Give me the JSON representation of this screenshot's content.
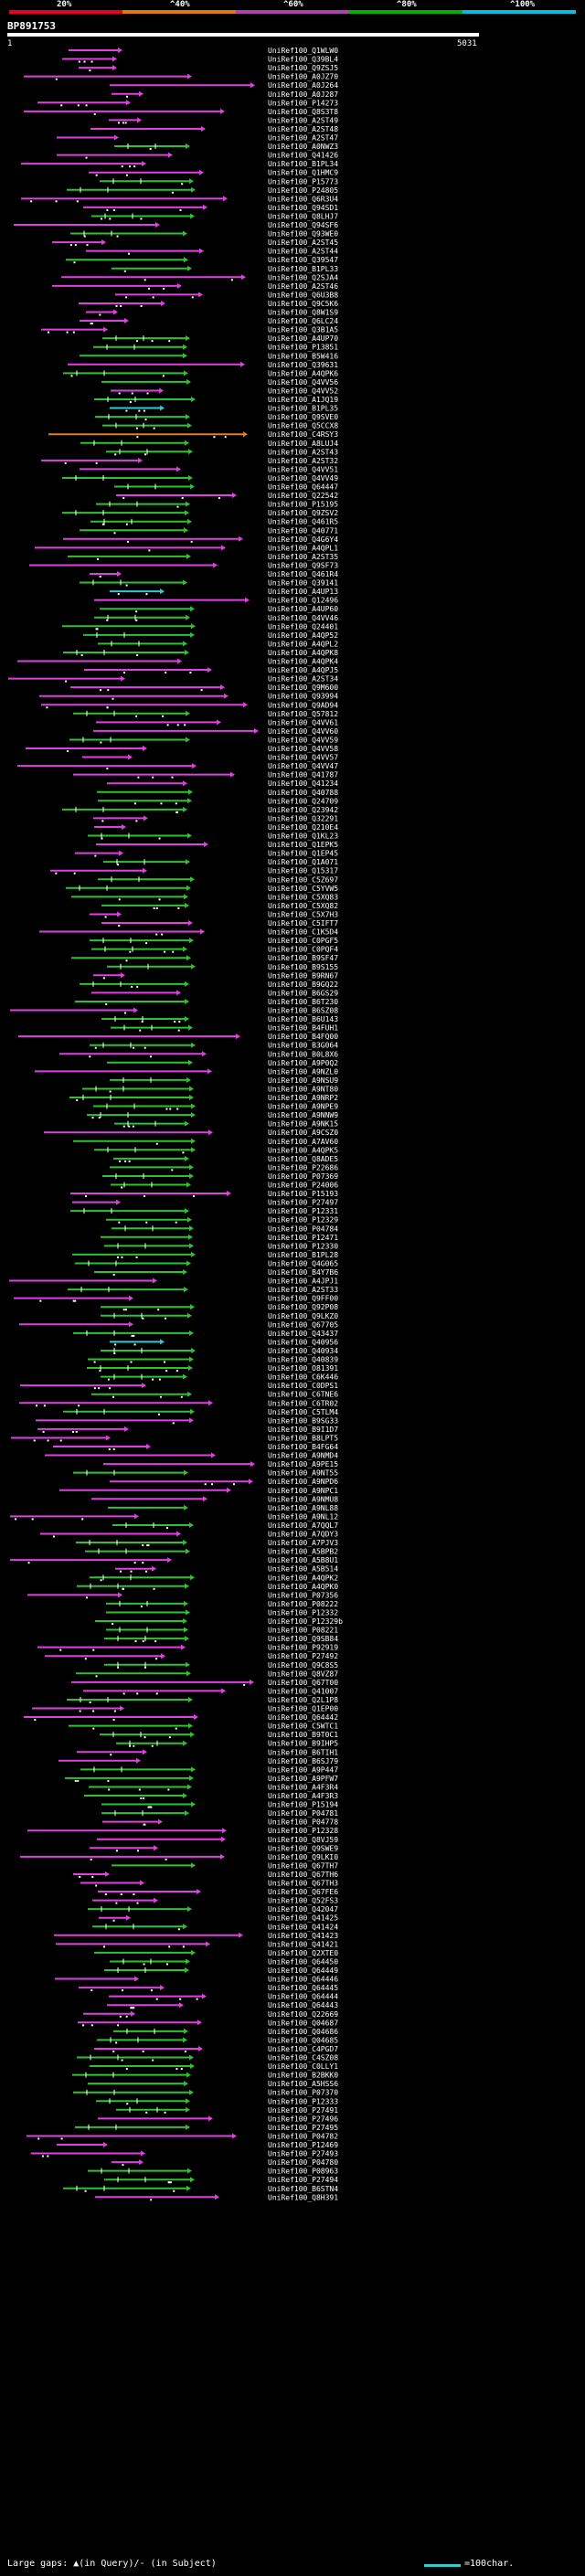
{
  "header": {
    "query_id": "BP891753",
    "start": "1",
    "end": "5031",
    "scale_labels": [
      "20%",
      "^40%",
      "^60%",
      "^80%",
      "^100%"
    ],
    "scale_colors": [
      "#e8002a",
      "#e07a00",
      "#b040b0",
      "#00b000",
      "#00c0e0"
    ]
  },
  "footer": {
    "legend": "Large gaps: ▲(in Query)/- (in Subject)",
    "scale_text": "=100char."
  },
  "colors": {
    "magenta": "#e040e0",
    "green": "#30c030",
    "cyan": "#30c8d8",
    "orange": "#e08020",
    "background": "#000000"
  },
  "chart_data": {
    "type": "alignment",
    "query": "BP891753",
    "query_range": [
      1,
      5031
    ],
    "hits": [
      "UniRef100_Q1WLW0",
      "UniRef100_Q39BL4",
      "UniRef100_Q9ZSJ5",
      "UniRef100_A0JZ70",
      "UniRef100_A0J264",
      "UniRef100_A0J287",
      "UniRef100_P14273",
      "UniRef100_Q8S3T8",
      "UniRef100_A2ST49",
      "UniRef100_A2ST48",
      "UniRef100_A2ST47",
      "UniRef100_A0NWZ3",
      "UniRef100_Q41426",
      "UniRef100_B1PL34",
      "UniRef100_Q1HMC9",
      "UniRef100_P15773",
      "UniRef100_P24805",
      "UniRef100_Q6R3U4",
      "UniRef100_Q94SD1",
      "UniRef100_Q8LHJ7",
      "UniRef100_Q94SF6",
      "UniRef100_Q93WE0",
      "UniRef100_A2ST45",
      "UniRef100_A2ST44",
      "UniRef100_Q39547",
      "UniRef100_B1PL33",
      "UniRef100_Q2SJA4",
      "UniRef100_A2ST46",
      "UniRef100_Q6U3B8",
      "UniRef100_Q9C5K6",
      "UniRef100_Q8W1S9",
      "UniRef100_Q6LC24",
      "UniRef100_Q3B1A5",
      "UniRef100_A4UP70",
      "UniRef100_P13851",
      "UniRef100_B5W416",
      "UniRef100_Q39631",
      "UniRef100_A4QPK6",
      "UniRef100_Q4VV56",
      "UniRef100_Q4VV52",
      "UniRef100_A1JQ19",
      "UniRef100_B1PL35",
      "UniRef100_Q9SVE0",
      "UniRef100_Q5CCX8",
      "UniRef100_C4RSY3",
      "UniRef100_A8LUJ4",
      "UniRef100_A2ST43",
      "UniRef100_A2ST32",
      "UniRef100_Q4VV51",
      "UniRef100_Q4VV49",
      "UniRef100_Q64447",
      "UniRef100_Q22542",
      "UniRef100_P15195",
      "UniRef100_Q9ZSV2",
      "UniRef100_Q461R5",
      "UniRef100_Q40771",
      "UniRef100_Q4G6Y4",
      "UniRef100_A4QPL1",
      "UniRef100_A2ST35",
      "UniRef100_Q9SF73",
      "UniRef100_Q461R4",
      "UniRef100_Q39141",
      "UniRef100_A4UP13",
      "UniRef100_Q12496",
      "UniRef100_A4UP60",
      "UniRef100_Q4VV46",
      "UniRef100_Q24401",
      "UniRef100_A4QP52",
      "UniRef100_A4QPL2",
      "UniRef100_A4QPK8",
      "UniRef100_A4QPK4",
      "UniRef100_A4QPJ5",
      "UniRef100_A2ST34",
      "UniRef100_Q9M600",
      "UniRef100_Q93994",
      "UniRef100_Q9AD94",
      "UniRef100_Q57812",
      "UniRef100_Q4VV61",
      "UniRef100_Q4VV60",
      "UniRef100_Q4VV59",
      "UniRef100_Q4VV58",
      "UniRef100_Q4VV57",
      "UniRef100_Q4VV47",
      "UniRef100_Q41787",
      "UniRef100_Q41234",
      "UniRef100_Q40788",
      "UniRef100_Q24709",
      "UniRef100_Q23942",
      "UniRef100_Q32291",
      "UniRef100_Q210E4",
      "UniRef100_Q1KL23",
      "UniRef100_Q1EPK5",
      "UniRef100_Q1EP45",
      "UniRef100_Q1A071",
      "UniRef100_Q15317",
      "UniRef100_C5Z697",
      "UniRef100_C5YVW5",
      "UniRef100_C5XQ83",
      "UniRef100_C5XQ82",
      "UniRef100_C5X7H3",
      "UniRef100_C5IFT7",
      "UniRef100_C1K5D4",
      "UniRef100_C0PGF5",
      "UniRef100_C0PQF4",
      "UniRef100_B9SF47",
      "UniRef100_B9S155",
      "UniRef100_B9RN67",
      "UniRef100_B9GQ22",
      "UniRef100_B6GS29",
      "UniRef100_B6T230",
      "UniRef100_B6SZ08",
      "UniRef100_B6U143",
      "UniRef100_B4FUH1",
      "UniRef100_B4FQ00",
      "UniRef100_B3G064",
      "UniRef100_B0L8X6",
      "UniRef100_A9P0Q2",
      "UniRef100_A9NZL0",
      "UniRef100_A9NSU9",
      "UniRef100_A9NT80",
      "UniRef100_A9NRP2",
      "UniRef100_A9NPE9",
      "UniRef100_A9NNW9",
      "UniRef100_A9NK15",
      "UniRef100_A9CSZ0",
      "UniRef100_A7AV60",
      "UniRef100_A4QPK5",
      "UniRef100_Q8ADE5",
      "UniRef100_P22686",
      "UniRef100_P07369",
      "UniRef100_P24006",
      "UniRef100_P15193",
      "UniRef100_P27497",
      "UniRef100_P12331",
      "UniRef100_P12329",
      "UniRef100_P04784",
      "UniRef100_P12471",
      "UniRef100_P12330",
      "UniRef100_B1PL28",
      "UniRef100_Q4G065",
      "UniRef100_B4Y7B6",
      "UniRef100_A4JPJ1",
      "UniRef100_A2ST33",
      "UniRef100_Q9FF00",
      "UniRef100_Q92P08",
      "UniRef100_Q9LKZ0",
      "UniRef100_Q67705",
      "UniRef100_Q43437",
      "UniRef100_Q40956",
      "UniRef100_Q40934",
      "UniRef100_Q40839",
      "UniRef100_O81391",
      "UniRef100_C6K446",
      "UniRef100_C0DPS1",
      "UniRef100_C6TNE6",
      "UniRef100_C6TR02",
      "UniRef100_C5TLM4",
      "UniRef100_B9SG33",
      "UniRef100_B9I1D7",
      "UniRef100_B8LPT5",
      "UniRef100_B4FG64",
      "UniRef100_A9NMD4",
      "UniRef100_A9PE15",
      "UniRef100_A9NT55",
      "UniRef100_A9NPD6",
      "UniRef100_A9NPC1",
      "UniRef100_A9NMU8",
      "UniRef100_A9NL88",
      "UniRef100_A9NL12",
      "UniRef100_A7QQL7",
      "UniRef100_A7QDY3",
      "UniRef100_A7PJV3",
      "UniRef100_A5BPB2",
      "UniRef100_A5B8U1",
      "UniRef100_A5B514",
      "UniRef100_A4QPK2",
      "UniRef100_A4QPK0",
      "UniRef100_P07356",
      "UniRef100_P08222",
      "UniRef100_P12332",
      "UniRef100_P12329b",
      "UniRef100_P08221",
      "UniRef100_Q9SB84",
      "UniRef100_P92919",
      "UniRef100_P27492",
      "UniRef100_Q9C8S5",
      "UniRef100_Q8VZ87",
      "UniRef100_Q67T00",
      "UniRef100_Q41007",
      "UniRef100_Q2L1P8",
      "UniRef100_Q1EP00",
      "UniRef100_Q64442",
      "UniRef100_C5WTC1",
      "UniRef100_B9T0C1",
      "UniRef100_B9IHP5",
      "UniRef100_B6TIH1",
      "UniRef100_B6SJ79",
      "UniRef100_A9P447",
      "UniRef100_A9PFW7",
      "UniRef100_A4F3R4",
      "UniRef100_A4F3R3",
      "UniRef100_P15194",
      "UniRef100_P04781",
      "UniRef100_P04778",
      "UniRef100_P12328",
      "UniRef100_Q8VJ59",
      "UniRef100_Q9SWE9",
      "UniRef100_Q9LKI0",
      "UniRef100_Q67TH7",
      "UniRef100_Q67TH6",
      "UniRef100_Q67TH3",
      "UniRef100_Q67FE6",
      "UniRef100_Q52FS3",
      "UniRef100_Q42047",
      "UniRef100_Q41425",
      "UniRef100_Q41424",
      "UniRef100_Q41423",
      "UniRef100_Q41421",
      "UniRef100_Q2XTE0",
      "UniRef100_Q64450",
      "UniRef100_Q64449",
      "UniRef100_Q64446",
      "UniRef100_Q64445",
      "UniRef100_Q64444",
      "UniRef100_Q64443",
      "UniRef100_Q22669",
      "UniRef100_Q04687",
      "UniRef100_Q04686",
      "UniRef100_Q04685",
      "UniRef100_C4PGD7",
      "UniRef100_C4SZ08",
      "UniRef100_C0LLY1",
      "UniRef100_B2BKK0",
      "UniRef100_A5HSS6",
      "UniRef100_P07370",
      "UniRef100_P12333",
      "UniRef100_P27491",
      "UniRef100_P27496",
      "UniRef100_P27495",
      "UniRef100_P04782",
      "UniRef100_P12469",
      "UniRef100_P27493",
      "UniRef100_P04780",
      "UniRef100_P08963",
      "UniRef100_P27494",
      "UniRef100_B6STN4",
      "UniRef100_Q8H391"
    ]
  }
}
